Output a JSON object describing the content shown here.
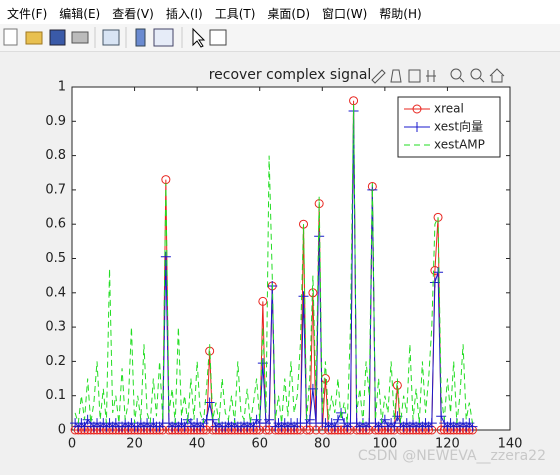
{
  "menu": [
    "文件(F)",
    "编辑(E)",
    "查看(V)",
    "插入(I)",
    "工具(T)",
    "桌面(D)",
    "窗口(W)",
    "帮助(H)"
  ],
  "watermark": "CSDN @NEWEVA__zzera22",
  "chart_data": {
    "type": "line",
    "title": "recover  complex signal",
    "x": [
      1,
      2,
      3,
      4,
      5,
      6,
      7,
      8,
      9,
      10,
      11,
      12,
      13,
      14,
      15,
      16,
      17,
      18,
      19,
      20,
      21,
      22,
      23,
      24,
      25,
      26,
      27,
      28,
      29,
      30,
      31,
      32,
      33,
      34,
      35,
      36,
      37,
      38,
      39,
      40,
      41,
      42,
      43,
      44,
      45,
      46,
      47,
      48,
      49,
      50,
      51,
      52,
      53,
      54,
      55,
      56,
      57,
      58,
      59,
      60,
      61,
      62,
      63,
      64,
      65,
      66,
      67,
      68,
      69,
      70,
      71,
      72,
      73,
      74,
      75,
      76,
      77,
      78,
      79,
      80,
      81,
      82,
      83,
      84,
      85,
      86,
      87,
      88,
      89,
      90,
      91,
      92,
      93,
      94,
      95,
      96,
      97,
      98,
      99,
      100,
      101,
      102,
      103,
      104,
      105,
      106,
      107,
      108,
      109,
      110,
      111,
      112,
      113,
      114,
      115,
      116,
      117,
      118,
      119,
      120,
      121,
      122,
      123,
      124,
      125,
      126,
      127,
      128
    ],
    "series": [
      {
        "name": "xreal",
        "color": "#e8241e",
        "marker": "o",
        "dash": false,
        "values": [
          0,
          0,
          0,
          0,
          0,
          0,
          0,
          0,
          0,
          0,
          0,
          0,
          0,
          0,
          0,
          0,
          0,
          0,
          0,
          0,
          0,
          0,
          0,
          0,
          0,
          0,
          0,
          0,
          0,
          0.73,
          0,
          0,
          0,
          0,
          0,
          0,
          0,
          0,
          0,
          0,
          0,
          0,
          0,
          0.23,
          0,
          0,
          0,
          0,
          0,
          0,
          0,
          0,
          0,
          0,
          0,
          0,
          0,
          0,
          0,
          0,
          0.375,
          0,
          0,
          0.42,
          0,
          0,
          0,
          0,
          0,
          0,
          0,
          0,
          0,
          0.6,
          0,
          0,
          0.4,
          0,
          0.66,
          0,
          0.15,
          0,
          0,
          0,
          0,
          0,
          0,
          0,
          0,
          0.96,
          0,
          0,
          0,
          0,
          0,
          0.71,
          0,
          0,
          0,
          0,
          0,
          0,
          0,
          0.13,
          0,
          0,
          0,
          0,
          0,
          0,
          0,
          0,
          0,
          0,
          0,
          0.465,
          0.62,
          0,
          0,
          0,
          0,
          0,
          0,
          0,
          0,
          0,
          0,
          0
        ]
      },
      {
        "name": "xest向量",
        "color": "#1a1acc",
        "marker": "+",
        "dash": false,
        "values": [
          0.02,
          0.01,
          0.02,
          0.01,
          0.03,
          0.02,
          0.01,
          0.02,
          0.01,
          0.02,
          0.01,
          0.02,
          0.01,
          0.02,
          0.01,
          0.01,
          0.02,
          0.01,
          0.02,
          0.01,
          0.01,
          0.02,
          0.01,
          0.02,
          0.01,
          0.02,
          0.01,
          0.01,
          0.02,
          0.505,
          0.02,
          0.01,
          0.02,
          0.01,
          0.02,
          0.01,
          0.03,
          0.02,
          0.01,
          0.02,
          0.01,
          0.02,
          0.03,
          0.08,
          0.03,
          0.01,
          0.02,
          0.01,
          0.01,
          0.02,
          0.01,
          0.02,
          0.01,
          0.01,
          0.02,
          0.01,
          0.02,
          0.01,
          0.03,
          0.02,
          0.195,
          0.02,
          0.03,
          0.42,
          0.01,
          0.02,
          0.01,
          0.02,
          0.01,
          0.02,
          0.01,
          0.02,
          0.02,
          0.39,
          0.02,
          0.03,
          0.12,
          0.02,
          0.565,
          0.02,
          0.02,
          0.01,
          0.02,
          0.01,
          0.03,
          0.05,
          0.02,
          0.01,
          0.02,
          0.93,
          0.02,
          0.01,
          0.02,
          0.01,
          0.02,
          0.7,
          0.02,
          0.01,
          0.02,
          0.03,
          0.01,
          0.02,
          0.01,
          0.04,
          0.02,
          0.01,
          0.02,
          0.01,
          0.02,
          0.01,
          0.02,
          0.01,
          0.02,
          0.01,
          0.02,
          0.43,
          0.46,
          0.04,
          0.02,
          0.01,
          0.02,
          0.01,
          0.02,
          0.01,
          0.02,
          0.01,
          0.02,
          0.01
        ]
      },
      {
        "name": "xestAMP",
        "color": "#22dd22",
        "marker": null,
        "dash": true,
        "values": [
          0.05,
          0.02,
          0.1,
          0.03,
          0.15,
          0.02,
          0.08,
          0.2,
          0.03,
          0.12,
          0.02,
          0.47,
          0.05,
          0.1,
          0.02,
          0.18,
          0.03,
          0.08,
          0.3,
          0.02,
          0.1,
          0.03,
          0.25,
          0.05,
          0.02,
          0.15,
          0.04,
          0.2,
          0.03,
          0.72,
          0.05,
          0.12,
          0.02,
          0.3,
          0.04,
          0.1,
          0.02,
          0.15,
          0.03,
          0.2,
          0.05,
          0.02,
          0.12,
          0.25,
          0.03,
          0.08,
          0.02,
          0.15,
          0.05,
          0.03,
          0.1,
          0.02,
          0.2,
          0.05,
          0.03,
          0.12,
          0.02,
          0.08,
          0.15,
          0.03,
          0.3,
          0.05,
          0.8,
          0.45,
          0.03,
          0.1,
          0.02,
          0.15,
          0.04,
          0.2,
          0.05,
          0.1,
          0.25,
          0.6,
          0.03,
          0.15,
          0.45,
          0.1,
          0.68,
          0.05,
          0.2,
          0.03,
          0.1,
          0.05,
          0.15,
          0.03,
          0.08,
          0.02,
          0.3,
          0.95,
          0.05,
          0.12,
          0.02,
          0.2,
          0.1,
          0.72,
          0.03,
          0.15,
          0.02,
          0.1,
          0.05,
          0.2,
          0.03,
          0.15,
          0.02,
          0.1,
          0.05,
          0.25,
          0.03,
          0.12,
          0.02,
          0.2,
          0.05,
          0.15,
          0.3,
          0.6,
          0.62,
          0.1,
          0.03,
          0.15,
          0.05,
          0.2,
          0.02,
          0.1,
          0.25,
          0.03,
          0.08,
          0.02
        ]
      }
    ],
    "xlim": [
      0,
      140
    ],
    "xticks": [
      0,
      20,
      40,
      60,
      80,
      100,
      120,
      140
    ],
    "ylim": [
      0,
      1
    ],
    "yticks": [
      0,
      0.1,
      0.2,
      0.3,
      0.4,
      0.5,
      0.6,
      0.7,
      0.8,
      0.9,
      1
    ],
    "legend": "upper right"
  }
}
